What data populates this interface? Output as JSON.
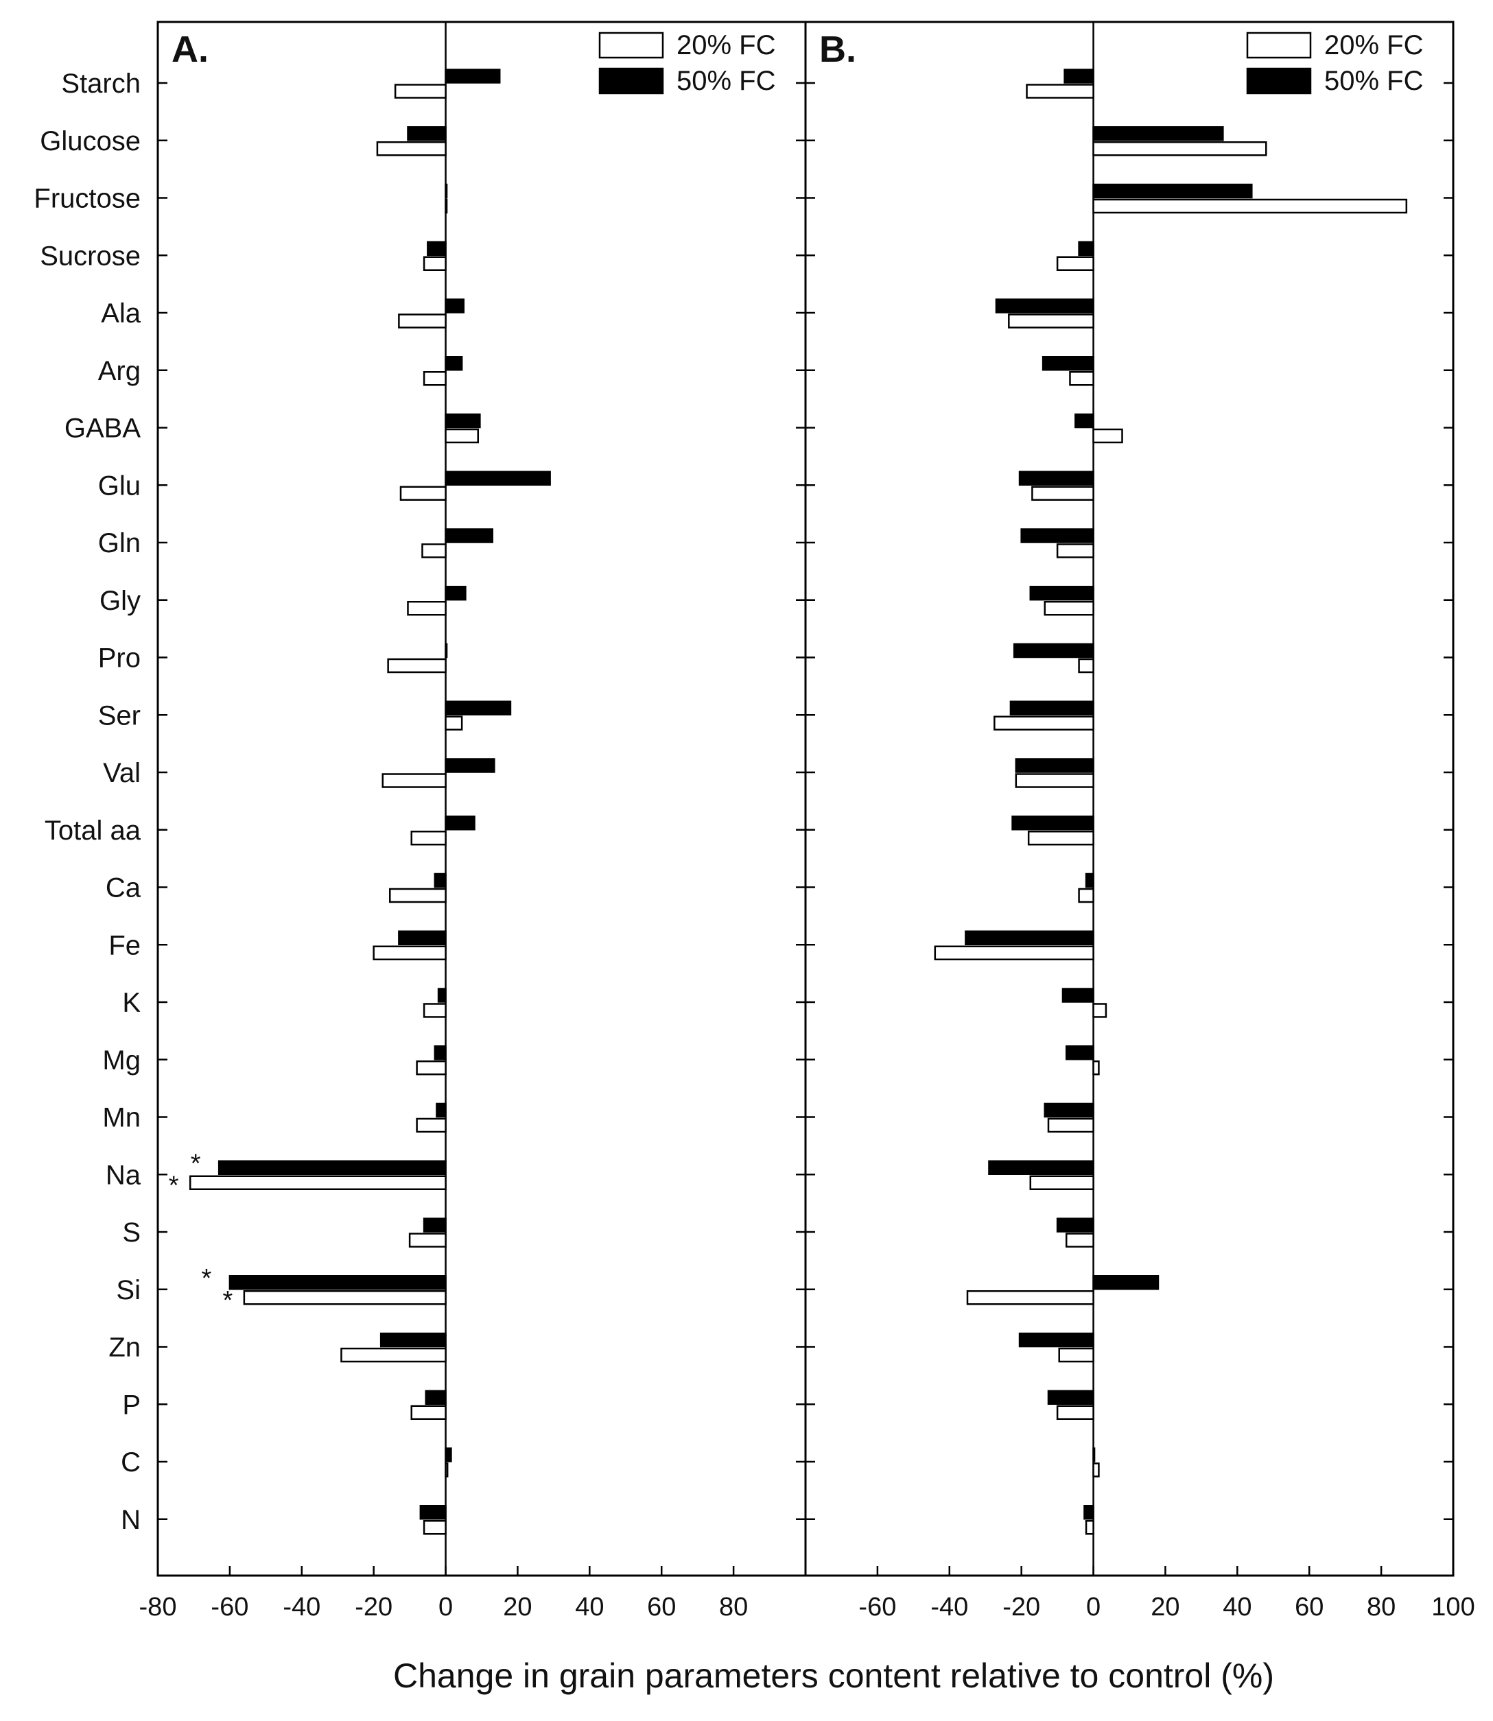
{
  "chart_data": {
    "type": "bar",
    "orientation": "horizontal",
    "xlabel": "Change in grain parameters content relative to control (%)",
    "categories": [
      "Starch",
      "Glucose",
      "Fructose",
      "Sucrose",
      "Ala",
      "Arg",
      "GABA",
      "Glu",
      "Gln",
      "Gly",
      "Pro",
      "Ser",
      "Val",
      "Total aa",
      "Ca",
      "Fe",
      "K",
      "Mg",
      "Mn",
      "Na",
      "S",
      "Si",
      "Zn",
      "P",
      "C",
      "N"
    ],
    "legend": [
      {
        "name": "20% FC",
        "fill": "#ffffff"
      },
      {
        "name": "50% FC",
        "fill": "#000000"
      }
    ],
    "panels": [
      {
        "label": "A.",
        "xlim": [
          -80,
          100
        ],
        "ticks": [
          -80,
          -60,
          -40,
          -20,
          0,
          20,
          40,
          60,
          80
        ],
        "tick_labels": [
          "-80",
          "-60",
          "-40",
          "-20",
          "0",
          "20",
          "40",
          "60",
          "80"
        ],
        "series": [
          {
            "name": "20% FC",
            "values": [
              -14,
              -19,
              0,
              -6,
              -13,
              -6,
              9,
              -12.5,
              -6.5,
              -10.5,
              -16,
              4.5,
              -17.5,
              -9.5,
              -15.5,
              -20,
              -6,
              -8,
              -8,
              -71,
              -10,
              -56,
              -29,
              -9.5,
              0.5,
              -6
            ]
          },
          {
            "name": "50% FC",
            "values": [
              15,
              -10.5,
              0,
              -5,
              5,
              4.5,
              9.5,
              29,
              13,
              5.5,
              0,
              18,
              13.5,
              8,
              -3,
              -13,
              -2,
              -3,
              -2.5,
              -63,
              -6,
              -60,
              -18,
              -5.5,
              1.5,
              -7
            ]
          }
        ],
        "annotations": [
          {
            "category": "Na",
            "series": "20% FC",
            "text": "*"
          },
          {
            "category": "Na",
            "series": "50% FC",
            "text": "*"
          },
          {
            "category": "Si",
            "series": "20% FC",
            "text": "*"
          },
          {
            "category": "Si",
            "series": "50% FC",
            "text": "*"
          }
        ]
      },
      {
        "label": "B.",
        "xlim": [
          -80,
          100
        ],
        "ticks": [
          -60,
          -40,
          -20,
          0,
          20,
          40,
          60,
          80,
          100
        ],
        "tick_labels": [
          "-60",
          "-40",
          "-20",
          "0",
          "20",
          "40",
          "60",
          "80",
          "100"
        ],
        "series": [
          {
            "name": "20% FC",
            "values": [
              -18.5,
              48,
              87,
              -10,
              -23.5,
              -6.5,
              8,
              -17,
              -10,
              -13.5,
              -4,
              -27.5,
              -21.5,
              -18,
              -4,
              -44,
              3.5,
              1.5,
              -12.5,
              -17.5,
              -7.5,
              -35,
              -9.5,
              -10,
              1.5,
              -2
            ]
          },
          {
            "name": "50% FC",
            "values": [
              -8,
              36,
              44,
              -4,
              -27,
              -14,
              -5,
              -20.5,
              -20,
              -17.5,
              -22,
              -23,
              -21.5,
              -22.5,
              -2,
              -35.5,
              -8.5,
              -7.5,
              -13.5,
              -29,
              -10,
              18,
              -20.5,
              -12.5,
              0,
              -2.5
            ]
          }
        ],
        "annotations": []
      }
    ]
  }
}
